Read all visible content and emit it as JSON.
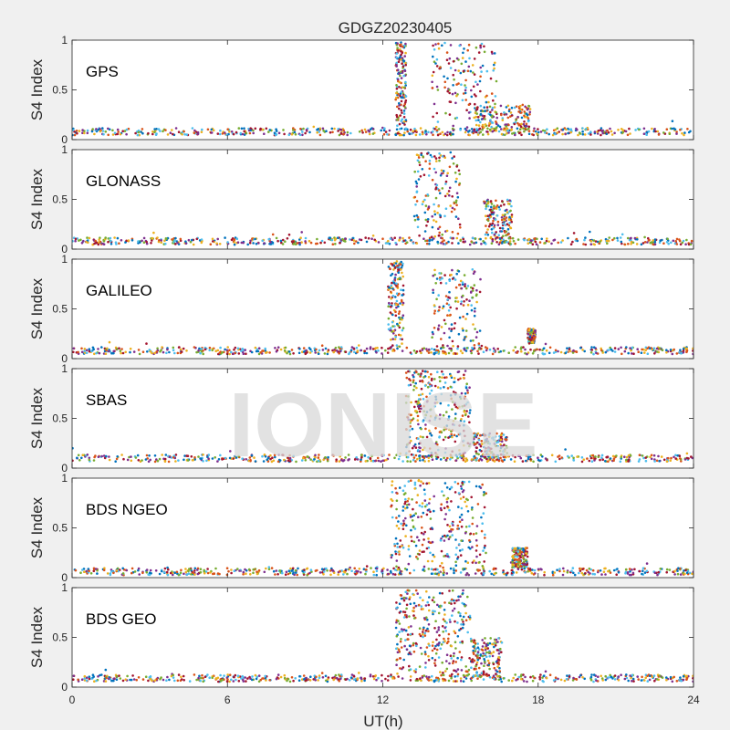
{
  "chart_data": {
    "type": "scatter",
    "title": "GDGZ20230405",
    "xlabel": "UT(h)",
    "ylabel": "S4 Index",
    "xlim": [
      0,
      24
    ],
    "ylim": [
      0,
      1
    ],
    "xticks": [
      0,
      6,
      12,
      18,
      24
    ],
    "xtick_labels": [
      "0",
      "6",
      "12",
      "18",
      "24"
    ],
    "yticks": [
      0,
      0.5,
      1
    ],
    "ytick_labels": [
      "0",
      "0.5",
      "1"
    ],
    "colors": [
      "#0072BD",
      "#D95319",
      "#EDB120",
      "#7E2F8E",
      "#77AC30",
      "#4DBEEE",
      "#A2142F"
    ],
    "watermark": "IONISE",
    "panels": [
      {
        "name": "GPS",
        "baseline": 0.08,
        "series_events": [
          {
            "x": [
              12.5,
              12.9
            ],
            "y": [
              0.1,
              0.98
            ]
          },
          {
            "x": [
              13.9,
              16.4
            ],
            "y": [
              0.1,
              0.98
            ]
          },
          {
            "x": [
              15.5,
              17.7
            ],
            "y": [
              0.1,
              0.35
            ]
          }
        ]
      },
      {
        "name": "GLONASS",
        "baseline": 0.08,
        "series_events": [
          {
            "x": [
              13.2,
              15.0
            ],
            "y": [
              0.1,
              0.98
            ]
          },
          {
            "x": [
              15.9,
              17.0
            ],
            "y": [
              0.1,
              0.5
            ]
          }
        ]
      },
      {
        "name": "GALILEO",
        "baseline": 0.08,
        "series_events": [
          {
            "x": [
              12.2,
              12.8
            ],
            "y": [
              0.1,
              0.98
            ]
          },
          {
            "x": [
              13.9,
              15.8
            ],
            "y": [
              0.1,
              0.9
            ]
          },
          {
            "x": [
              17.6,
              17.9
            ],
            "y": [
              0.15,
              0.3
            ]
          }
        ]
      },
      {
        "name": "SBAS",
        "baseline": 0.1,
        "series_events": [
          {
            "x": [
              12.9,
              13.9
            ],
            "y": [
              0.1,
              0.98
            ]
          },
          {
            "x": [
              14.0,
              15.4
            ],
            "y": [
              0.1,
              0.98
            ]
          },
          {
            "x": [
              15.5,
              16.8
            ],
            "y": [
              0.1,
              0.35
            ]
          }
        ]
      },
      {
        "name": "BDS NGEO",
        "baseline": 0.06,
        "series_events": [
          {
            "x": [
              12.3,
              14.0
            ],
            "y": [
              0.1,
              0.98
            ]
          },
          {
            "x": [
              14.2,
              16.0
            ],
            "y": [
              0.1,
              0.98
            ]
          },
          {
            "x": [
              17.0,
              17.6
            ],
            "y": [
              0.1,
              0.3
            ]
          }
        ]
      },
      {
        "name": "BDS GEO",
        "baseline": 0.09,
        "series_events": [
          {
            "x": [
              12.5,
              13.8
            ],
            "y": [
              0.15,
              0.98
            ]
          },
          {
            "x": [
              13.9,
              15.4
            ],
            "y": [
              0.1,
              0.98
            ]
          },
          {
            "x": [
              15.4,
              16.6
            ],
            "y": [
              0.1,
              0.5
            ]
          }
        ]
      }
    ]
  }
}
